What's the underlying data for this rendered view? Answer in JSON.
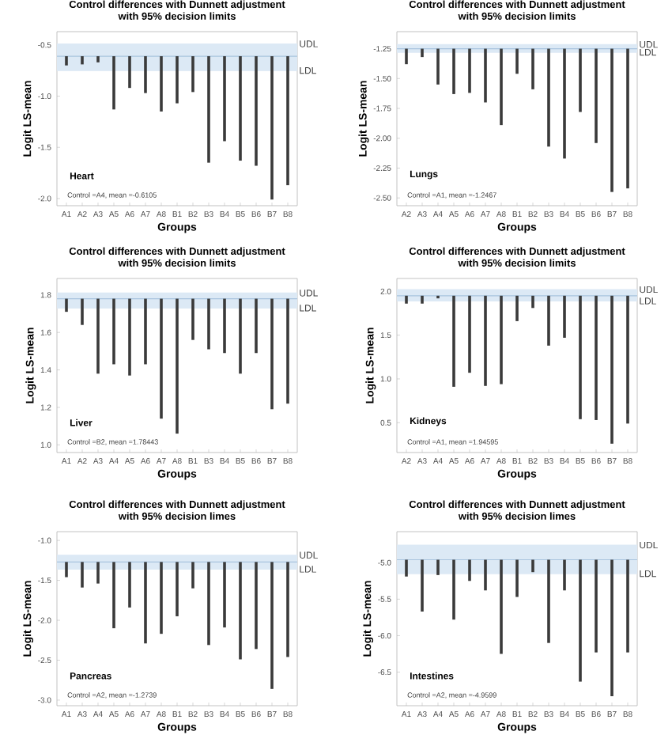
{
  "chart_data": [
    {
      "type": "bar",
      "title": "Control differences with Dunnett adjustment",
      "subtitle": "with 95% decision limits",
      "xlabel": "Groups",
      "ylabel": "Logit LS-mean",
      "color": "#3a3a3a",
      "categories": [
        "A1",
        "A2",
        "A3",
        "A5",
        "A6",
        "A7",
        "A8",
        "B1",
        "B2",
        "B3",
        "B4",
        "B5",
        "B6",
        "B7",
        "B8"
      ],
      "base": [
        -0.61,
        -0.61,
        -0.61,
        -0.61,
        -0.61,
        -0.61,
        -0.61,
        -0.61,
        -0.61,
        -0.61,
        -0.61,
        -0.61,
        -0.61,
        -0.61,
        -0.61
      ],
      "values": [
        -0.09,
        -0.08,
        -0.06,
        -0.52,
        -0.31,
        -0.36,
        -0.54,
        -0.46,
        -0.35,
        -1.04,
        -0.83,
        -1.02,
        -1.07,
        -1.4,
        -1.26
      ],
      "ylim": [
        -2.07,
        -0.37
      ],
      "yticks": [
        {
          "value": -2.0,
          "label": "-2.0"
        },
        {
          "value": -1.5,
          "label": "-1.5"
        },
        {
          "value": -1.0,
          "label": "-1.0"
        },
        {
          "value": -0.5,
          "label": "-0.5"
        }
      ],
      "bands": [
        {
          "axis": "y",
          "from": -0.75,
          "to": -0.49,
          "color": "#dce9f5"
        }
      ],
      "ref_lines": [
        {
          "axis": "y",
          "value": -0.49,
          "label": "UDL",
          "color": "#dce9f5"
        },
        {
          "axis": "y",
          "value": -0.75,
          "label": "LDL",
          "color": "#dce9f5"
        },
        {
          "axis": "y",
          "value": -0.61,
          "color": "#a9c4de"
        }
      ],
      "annotations": [
        "Heart",
        "Control =A4, mean =-0.6105"
      ]
    },
    {
      "type": "bar",
      "title": "Control differences with Dunnett adjustment",
      "subtitle": "with 95% decision limits",
      "xlabel": "Groups",
      "ylabel": "Logit LS-mean",
      "color": "#3a3a3a",
      "categories": [
        "A2",
        "A3",
        "A4",
        "A5",
        "A6",
        "A7",
        "A8",
        "B1",
        "B2",
        "B3",
        "B4",
        "B5",
        "B6",
        "B7",
        "B8"
      ],
      "base": [
        -1.25,
        -1.25,
        -1.25,
        -1.25,
        -1.25,
        -1.25,
        -1.25,
        -1.25,
        -1.25,
        -1.25,
        -1.25,
        -1.25,
        -1.25,
        -1.25,
        -1.25
      ],
      "values": [
        -0.13,
        -0.07,
        -0.3,
        -0.38,
        -0.37,
        -0.45,
        -0.64,
        -0.21,
        -0.34,
        -0.82,
        -0.92,
        -0.53,
        -0.79,
        -1.2,
        -1.17
      ],
      "ylim": [
        -2.565,
        -1.107
      ],
      "yticks": [
        {
          "value": -2.5,
          "label": "-2.50"
        },
        {
          "value": -2.25,
          "label": "-2.25"
        },
        {
          "value": -2.0,
          "label": "-2.00"
        },
        {
          "value": -1.75,
          "label": "-1.75"
        },
        {
          "value": -1.5,
          "label": "-1.50"
        },
        {
          "value": -1.25,
          "label": "-1.25"
        }
      ],
      "bands": [
        {
          "axis": "y",
          "from": -1.28,
          "to": -1.215,
          "color": "#dce9f5"
        }
      ],
      "ref_lines": [
        {
          "axis": "y",
          "value": -1.215,
          "label": "UDL",
          "color": "#dce9f5"
        },
        {
          "axis": "y",
          "value": -1.28,
          "label": "LDL",
          "color": "#dce9f5"
        },
        {
          "axis": "y",
          "value": -1.25,
          "color": "#a9c4de"
        }
      ],
      "annotations": [
        "Lungs",
        "Control =A1, mean =-1.2467"
      ]
    },
    {
      "type": "bar",
      "title": "Control differences with Dunnett adjustment",
      "subtitle": "with 95% decision limits",
      "xlabel": "Groups",
      "ylabel": "Logit LS-mean",
      "color": "#3a3a3a",
      "categories": [
        "A1",
        "A2",
        "A3",
        "A4",
        "A5",
        "A6",
        "A7",
        "A8",
        "B1",
        "B3",
        "B4",
        "B5",
        "B6",
        "B7",
        "B8"
      ],
      "base": [
        1.78,
        1.78,
        1.78,
        1.78,
        1.78,
        1.78,
        1.78,
        1.78,
        1.78,
        1.78,
        1.78,
        1.78,
        1.78,
        1.78,
        1.78
      ],
      "values": [
        -0.07,
        -0.14,
        -0.4,
        -0.35,
        -0.41,
        -0.35,
        -0.64,
        -0.72,
        -0.22,
        -0.27,
        -0.29,
        -0.4,
        -0.29,
        -0.59,
        -0.56
      ],
      "ylim": [
        0.959,
        1.888
      ],
      "yticks": [
        {
          "value": 1.0,
          "label": "1.0"
        },
        {
          "value": 1.2,
          "label": "1.2"
        },
        {
          "value": 1.4,
          "label": "1.4"
        },
        {
          "value": 1.6,
          "label": "1.6"
        },
        {
          "value": 1.8,
          "label": "1.8"
        }
      ],
      "bands": [
        {
          "axis": "y",
          "from": 1.73,
          "to": 1.81,
          "color": "#dce9f5"
        }
      ],
      "ref_lines": [
        {
          "axis": "y",
          "value": 1.81,
          "label": "UDL",
          "color": "#dce9f5"
        },
        {
          "axis": "y",
          "value": 1.73,
          "label": "LDL",
          "color": "#dce9f5"
        },
        {
          "axis": "y",
          "value": 1.78,
          "color": "#a9c4de"
        }
      ],
      "annotations": [
        "Liver",
        "Control =B2, mean =1.78443"
      ]
    },
    {
      "type": "bar",
      "title": "Control differences with Dunnett adjustment",
      "subtitle": "with 95% decision limits",
      "xlabel": "Groups",
      "ylabel": "Logit LS-mean",
      "color": "#3a3a3a",
      "categories": [
        "A2",
        "A3",
        "A4",
        "A5",
        "A6",
        "A7",
        "A8",
        "B1",
        "B2",
        "B3",
        "B4",
        "B5",
        "B6",
        "B7",
        "B8"
      ],
      "base": [
        1.95,
        1.95,
        1.95,
        1.95,
        1.95,
        1.95,
        1.95,
        1.95,
        1.95,
        1.95,
        1.95,
        1.95,
        1.95,
        1.95,
        1.95
      ],
      "values": [
        -0.09,
        -0.09,
        -0.03,
        -1.04,
        -0.88,
        -1.03,
        -1.01,
        -0.29,
        -0.14,
        -0.57,
        -0.48,
        -1.41,
        -1.42,
        -1.69,
        -1.46
      ],
      "ylim": [
        0.159,
        2.147
      ],
      "yticks": [
        {
          "value": 0.5,
          "label": "0.5"
        },
        {
          "value": 1.0,
          "label": "1.0"
        },
        {
          "value": 1.5,
          "label": "1.5"
        },
        {
          "value": 2.0,
          "label": "2.0"
        }
      ],
      "bands": [
        {
          "axis": "y",
          "from": 1.89,
          "to": 2.02,
          "color": "#dce9f5"
        }
      ],
      "ref_lines": [
        {
          "axis": "y",
          "value": 2.02,
          "label": "UDL",
          "color": "#dce9f5"
        },
        {
          "axis": "y",
          "value": 1.89,
          "label": "LDL",
          "color": "#dce9f5"
        },
        {
          "axis": "y",
          "value": 1.95,
          "color": "#a9c4de"
        }
      ],
      "annotations": [
        "Kidneys",
        "Control =A1, mean =1.94595"
      ]
    },
    {
      "type": "bar",
      "title": "Control differences with Dunnett adjustment",
      "subtitle": "with 95% decision limes",
      "xlabel": "Groups",
      "ylabel": "Logit LS-mean",
      "color": "#3a3a3a",
      "categories": [
        "A1",
        "A3",
        "A4",
        "A5",
        "A6",
        "A7",
        "A8",
        "B1",
        "B2",
        "B3",
        "B4",
        "B5",
        "B6",
        "B7",
        "B8"
      ],
      "base": [
        -1.27,
        -1.27,
        -1.27,
        -1.27,
        -1.27,
        -1.27,
        -1.27,
        -1.27,
        -1.27,
        -1.27,
        -1.27,
        -1.27,
        -1.27,
        -1.27,
        -1.27
      ],
      "values": [
        -0.19,
        -0.32,
        -0.27,
        -0.83,
        -0.57,
        -1.02,
        -0.9,
        -0.68,
        -0.33,
        -1.04,
        -0.82,
        -1.22,
        -1.09,
        -1.59,
        -1.19
      ],
      "ylim": [
        -3.07,
        -0.89
      ],
      "yticks": [
        {
          "value": -3.0,
          "label": "-3.0"
        },
        {
          "value": -2.5,
          "label": "-2.5"
        },
        {
          "value": -2.0,
          "label": "-2.0"
        },
        {
          "value": -1.5,
          "label": "-1.5"
        },
        {
          "value": -1.0,
          "label": "-1.0"
        }
      ],
      "bands": [
        {
          "axis": "y",
          "from": -1.36,
          "to": -1.185,
          "color": "#dce9f5"
        }
      ],
      "ref_lines": [
        {
          "axis": "y",
          "value": -1.185,
          "label": "UDL",
          "color": "#dce9f5"
        },
        {
          "axis": "y",
          "value": -1.36,
          "label": "LDL",
          "color": "#dce9f5"
        },
        {
          "axis": "y",
          "value": -1.27,
          "color": "#a9c4de"
        }
      ],
      "annotations": [
        "Pancreas",
        "Control =A2, mean =-1.2739"
      ]
    },
    {
      "type": "bar",
      "title": "Control differences with Dunnett adjustment",
      "subtitle": "with 95% decision limes",
      "xlabel": "Groups",
      "ylabel": "Logit LS-mean",
      "color": "#3a3a3a",
      "categories": [
        "A1",
        "A3",
        "A4",
        "A5",
        "A6",
        "A7",
        "A8",
        "B1",
        "B2",
        "B3",
        "B4",
        "B5",
        "B6",
        "B7",
        "B8"
      ],
      "base": [
        -4.96,
        -4.96,
        -4.96,
        -4.96,
        -4.96,
        -4.96,
        -4.96,
        -4.96,
        -4.96,
        -4.96,
        -4.96,
        -4.96,
        -4.96,
        -4.96,
        -4.96
      ],
      "values": [
        -0.23,
        -0.71,
        -0.21,
        -0.82,
        -0.29,
        -0.42,
        -1.29,
        -0.51,
        -0.17,
        -1.14,
        -0.42,
        -1.67,
        -1.27,
        -1.87,
        -1.27
      ],
      "ylim": [
        -6.96,
        -4.575
      ],
      "yticks": [
        {
          "value": -6.5,
          "label": "-6.5"
        },
        {
          "value": -6.0,
          "label": "-6.0"
        },
        {
          "value": -5.5,
          "label": "-5.5"
        },
        {
          "value": -5.0,
          "label": "-5.0"
        }
      ],
      "bands": [
        {
          "axis": "y",
          "from": -5.15,
          "to": -4.76,
          "color": "#dce9f5"
        }
      ],
      "ref_lines": [
        {
          "axis": "y",
          "value": -4.76,
          "label": "UDL",
          "color": "#dce9f5"
        },
        {
          "axis": "y",
          "value": -5.15,
          "label": "LDL",
          "color": "#dce9f5"
        },
        {
          "axis": "y",
          "value": -4.96,
          "color": "#a9c4de"
        }
      ],
      "annotations": [
        "Intestines",
        "Control =A2, mean =-4.9599"
      ]
    }
  ]
}
